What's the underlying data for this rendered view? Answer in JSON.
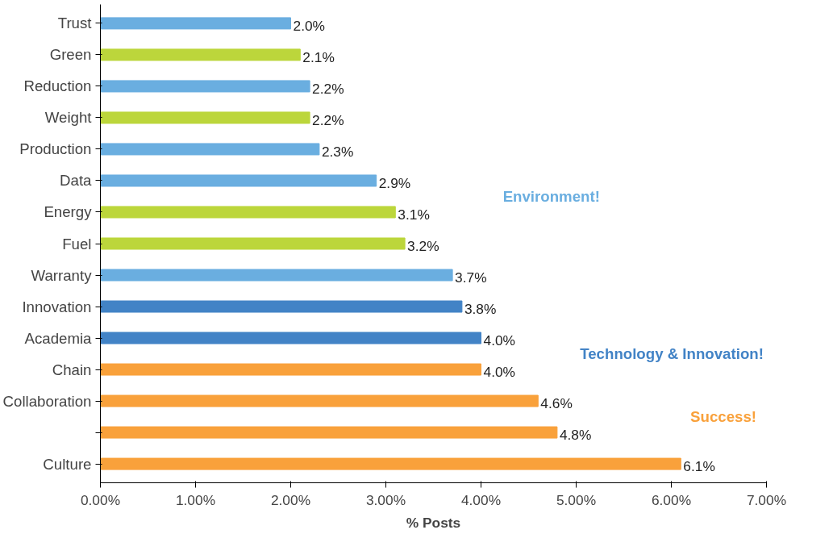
{
  "chart_data": {
    "type": "bar",
    "orientation": "horizontal",
    "xlabel": "% Posts",
    "categories": [
      "Trust",
      "Green",
      "Reduction",
      "Weight",
      "Production",
      "Data",
      "Energy",
      "Fuel",
      "Warranty",
      "Innovation",
      "Academia",
      "Chain",
      "Collaboration",
      null,
      "Culture"
    ],
    "values": [
      2.0,
      2.1,
      2.2,
      2.2,
      2.3,
      2.9,
      3.1,
      3.2,
      3.7,
      3.8,
      4.0,
      4.0,
      4.6,
      4.8,
      6.1
    ],
    "colors": [
      "#6aaee0",
      "#bcd63b",
      "#6aaee0",
      "#bcd63b",
      "#6aaee0",
      "#6aaee0",
      "#bcd63b",
      "#bcd63b",
      "#6aaee0",
      "#4283c6",
      "#4283c6",
      "#f9a13b",
      "#f9a13b",
      "#f9a13b",
      "#f9a13b"
    ],
    "value_labels": [
      "2.0%",
      "2.1%",
      "2.2%",
      "2.2%",
      "2.3%",
      "2.9%",
      "3.1%",
      "3.2%",
      "3.7%",
      "3.8%",
      "4.0%",
      "4.0%",
      "4.6%",
      "4.8%",
      "6.1%"
    ],
    "xlim": [
      0,
      7
    ],
    "xticks": [
      {
        "value": 0,
        "label": "0.00%"
      },
      {
        "value": 1,
        "label": "1.00%"
      },
      {
        "value": 2,
        "label": "2.00%"
      },
      {
        "value": 3,
        "label": "3.00%"
      },
      {
        "value": 4,
        "label": "4.00%"
      },
      {
        "value": 5,
        "label": "5.00%"
      },
      {
        "value": 6,
        "label": "6.00%"
      },
      {
        "value": 7,
        "label": "7.00%"
      }
    ],
    "grid": false,
    "annotations": [
      "Environment!",
      "Technology & Innovation!",
      "Success!"
    ]
  }
}
